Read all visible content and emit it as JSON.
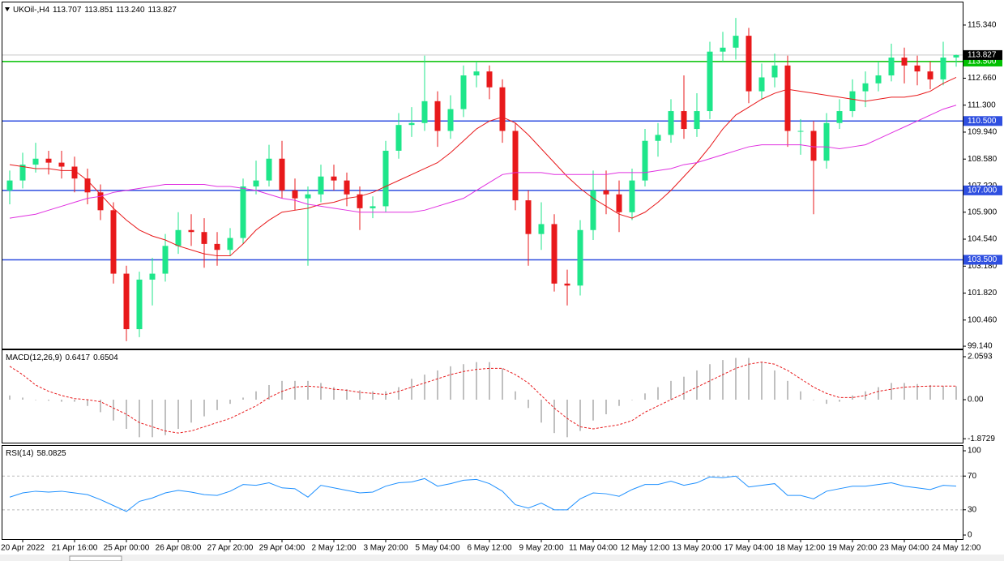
{
  "chart_data": [
    {
      "type": "candlestick",
      "title": "UKOil-,H4",
      "ohlc_labels": [
        "113.707",
        "113.851",
        "113.240",
        "113.827"
      ],
      "categories": [
        null,
        "20 Apr 2022",
        null,
        null,
        null,
        "21 Apr 16:00",
        null,
        null,
        null,
        "25 Apr 00:00",
        null,
        null,
        null,
        "26 Apr 08:00",
        null,
        null,
        null,
        "27 Apr 20:00",
        null,
        null,
        null,
        "29 Apr 04:00",
        null,
        null,
        null,
        "2 May 12:00",
        null,
        null,
        null,
        "3 May 20:00",
        null,
        null,
        null,
        "5 May 04:00",
        null,
        null,
        null,
        "6 May 12:00",
        null,
        null,
        null,
        "9 May 20:00",
        null,
        null,
        null,
        "11 May 04:00",
        null,
        null,
        null,
        "12 May 12:00",
        null,
        null,
        null,
        "13 May 20:00",
        null,
        null,
        null,
        "17 May 04:00",
        null,
        null,
        null,
        "18 May 12:00",
        null,
        null,
        null,
        "19 May 20:00",
        null,
        null,
        null,
        "23 May 04:00",
        null,
        null,
        null,
        "24 May 12:00"
      ],
      "open": [
        107.0,
        107.5,
        108.3,
        108.6,
        108.4,
        108.2,
        107.6,
        106.9,
        106.0,
        102.8,
        100.0,
        102.5,
        102.8,
        104.2,
        105.0,
        104.9,
        104.3,
        104.0,
        104.6,
        107.2,
        107.5,
        108.6,
        107.0,
        106.6,
        106.8,
        107.7,
        107.5,
        106.8,
        106.1,
        106.2,
        109.0,
        110.3,
        110.4,
        111.5,
        110.0,
        111.1,
        112.8,
        113.0,
        112.2,
        110.0,
        106.5,
        104.8,
        105.3,
        102.3,
        102.2,
        105.0,
        107.0,
        106.8,
        105.9,
        107.5,
        109.5,
        109.8,
        111.0,
        110.1,
        111.0,
        114.0,
        114.2,
        114.8,
        112.0,
        112.7,
        113.3,
        110.0,
        110.0,
        108.5,
        110.4,
        111.0,
        112.0,
        112.4,
        112.8,
        113.7,
        113.3,
        113.0,
        112.6,
        113.707
      ],
      "high": [
        108.0,
        108.9,
        109.4,
        109.0,
        109.0,
        108.7,
        108.1,
        107.3,
        106.4,
        103.2,
        102.9,
        103.6,
        104.8,
        105.9,
        105.8,
        105.6,
        104.9,
        105.1,
        107.6,
        108.5,
        109.3,
        109.5,
        107.6,
        107.2,
        108.3,
        108.3,
        107.9,
        107.2,
        106.7,
        109.5,
        110.9,
        111.2,
        113.8,
        112.0,
        111.8,
        113.3,
        113.5,
        113.3,
        112.6,
        110.4,
        107.0,
        106.4,
        105.8,
        103.0,
        105.5,
        108.0,
        108.0,
        107.5,
        108.1,
        110.1,
        110.4,
        111.6,
        112.8,
        111.9,
        114.5,
        115.0,
        115.7,
        115.2,
        113.4,
        113.9,
        113.8,
        110.6,
        110.5,
        110.9,
        111.6,
        112.6,
        113.0,
        113.5,
        114.4,
        114.2,
        113.8,
        113.5,
        114.5,
        113.851
      ],
      "low": [
        106.3,
        107.1,
        107.9,
        107.8,
        107.6,
        106.9,
        106.3,
        105.5,
        102.3,
        99.4,
        99.6,
        101.2,
        102.4,
        103.8,
        104.2,
        103.1,
        103.2,
        103.7,
        104.3,
        106.8,
        107.2,
        106.6,
        106.0,
        103.2,
        106.4,
        107.0,
        106.2,
        105.0,
        105.6,
        105.9,
        108.6,
        109.7,
        110.0,
        109.2,
        109.6,
        110.7,
        112.2,
        111.6,
        109.4,
        106.0,
        103.2,
        104.0,
        101.9,
        101.2,
        101.7,
        104.5,
        105.8,
        104.9,
        105.5,
        107.2,
        108.7,
        109.4,
        109.6,
        109.7,
        110.6,
        113.5,
        113.6,
        111.4,
        111.6,
        112.2,
        109.2,
        108.8,
        105.8,
        108.1,
        110.1,
        110.7,
        111.2,
        112.0,
        112.5,
        112.4,
        112.3,
        112.1,
        112.3,
        113.24
      ],
      "close": [
        107.5,
        108.3,
        108.6,
        108.4,
        108.2,
        107.6,
        106.9,
        106.0,
        102.8,
        100.0,
        102.5,
        102.8,
        104.2,
        105.0,
        104.9,
        104.3,
        104.0,
        104.6,
        107.2,
        107.5,
        108.6,
        107.0,
        106.6,
        106.8,
        107.7,
        107.5,
        106.8,
        106.1,
        106.2,
        109.0,
        110.3,
        110.4,
        111.5,
        110.0,
        111.1,
        112.8,
        113.0,
        112.2,
        110.0,
        106.5,
        104.8,
        105.3,
        102.3,
        102.2,
        105.0,
        107.0,
        106.8,
        105.9,
        107.5,
        109.5,
        109.8,
        111.0,
        110.1,
        111.0,
        114.0,
        114.2,
        114.8,
        112.0,
        112.7,
        113.3,
        110.0,
        110.0,
        108.5,
        110.4,
        111.0,
        112.0,
        112.4,
        112.8,
        113.7,
        113.3,
        113.0,
        112.6,
        113.7,
        113.827
      ],
      "up_color": "#1ee68a",
      "down_color": "#e8191b",
      "current_price_color": "#c8c8c8",
      "lines": [
        {
          "color": "#e8191b",
          "values": [
            108.3,
            108.2,
            108.1,
            108.1,
            108.0,
            108.0,
            107.5,
            106.8,
            106.1,
            105.5,
            105.0,
            104.7,
            104.5,
            104.2,
            104.0,
            103.8,
            103.7,
            103.7,
            104.3,
            105.0,
            105.5,
            105.9,
            106.0,
            106.1,
            106.3,
            106.4,
            106.6,
            106.7,
            106.9,
            107.2,
            107.5,
            107.8,
            108.1,
            108.4,
            108.9,
            109.5,
            110.1,
            110.5,
            110.7,
            110.4,
            109.8,
            109.1,
            108.4,
            107.7,
            107.1,
            106.6,
            106.2,
            105.8,
            105.6,
            105.9,
            106.4,
            107.0,
            107.7,
            108.4,
            109.2,
            110.1,
            110.8,
            111.2,
            111.6,
            111.9,
            112.1,
            112.0,
            111.9,
            111.8,
            111.7,
            111.6,
            111.5,
            111.6,
            111.7,
            111.7,
            111.8,
            112.0,
            112.4,
            112.7
          ]
        },
        {
          "color": "#e030e0",
          "values": [
            105.6,
            105.7,
            105.8,
            106.0,
            106.2,
            106.4,
            106.6,
            106.7,
            106.9,
            107.0,
            107.1,
            107.2,
            107.3,
            107.3,
            107.3,
            107.3,
            107.2,
            107.2,
            107.1,
            107.0,
            106.8,
            106.6,
            106.5,
            106.3,
            106.2,
            106.1,
            106.0,
            105.9,
            105.9,
            105.9,
            105.9,
            105.9,
            106.0,
            106.2,
            106.4,
            106.6,
            107.0,
            107.4,
            107.8,
            107.9,
            107.9,
            107.9,
            107.8,
            107.8,
            107.8,
            107.8,
            107.8,
            107.9,
            107.9,
            107.9,
            108.0,
            108.1,
            108.3,
            108.4,
            108.6,
            108.8,
            109.0,
            109.2,
            109.3,
            109.3,
            109.3,
            109.3,
            109.2,
            109.2,
            109.1,
            109.2,
            109.3,
            109.6,
            109.9,
            110.2,
            110.5,
            110.8,
            111.1,
            111.3
          ]
        }
      ],
      "levels": [
        {
          "value": 113.5,
          "label": "113.500",
          "color": "#00c000"
        },
        {
          "value": 110.5,
          "label": "110.500",
          "color": "#2f4fe0"
        },
        {
          "value": 107.0,
          "label": "107.000",
          "color": "#2f4fe0"
        },
        {
          "value": 103.5,
          "label": "103.500",
          "color": "#2f4fe0"
        }
      ],
      "ylim": [
        99.02,
        116.4
      ],
      "yticks": [
        {
          "value": 115.34,
          "label": "115.340"
        },
        {
          "value": 112.66,
          "label": "112.660"
        },
        {
          "value": 111.3,
          "label": "111.300"
        },
        {
          "value": 109.94,
          "label": "109.940"
        },
        {
          "value": 108.58,
          "label": "108.580"
        },
        {
          "value": 107.22,
          "label": "107.220"
        },
        {
          "value": 105.9,
          "label": "105.900"
        },
        {
          "value": 104.54,
          "label": "104.540"
        },
        {
          "value": 103.18,
          "label": "103.180"
        },
        {
          "value": 101.82,
          "label": "101.820"
        },
        {
          "value": 100.46,
          "label": "100.460"
        },
        {
          "value": 99.14,
          "label": "99.140"
        }
      ]
    },
    {
      "type": "macd",
      "title": "MACD(12,26,9)",
      "histogram": [
        0.2,
        0.1,
        0.0,
        -0.05,
        -0.1,
        -0.1,
        -0.3,
        -0.6,
        -1.0,
        -1.4,
        -1.8,
        -1.8,
        -1.7,
        -1.4,
        -1.1,
        -0.8,
        -0.5,
        -0.2,
        0.1,
        0.4,
        0.7,
        0.9,
        0.9,
        0.9,
        0.8,
        0.6,
        0.5,
        0.45,
        0.4,
        0.4,
        0.6,
        1.0,
        1.2,
        1.4,
        1.6,
        1.7,
        1.8,
        1.8,
        1.5,
        0.4,
        -0.4,
        -1.1,
        -1.6,
        -1.8,
        -1.5,
        -1.0,
        -0.7,
        -0.3,
        0.0,
        0.3,
        0.6,
        0.9,
        1.1,
        1.4,
        1.7,
        1.9,
        2.0,
        2.0,
        1.8,
        1.4,
        0.9,
        0.4,
        0.0,
        -0.2,
        -0.1,
        0.2,
        0.4,
        0.6,
        0.8,
        0.8,
        0.75,
        0.7,
        0.65,
        0.6417
      ],
      "signal": [
        1.6,
        1.2,
        0.7,
        0.4,
        0.2,
        0.05,
        0.0,
        -0.1,
        -0.4,
        -0.7,
        -1.1,
        -1.3,
        -1.5,
        -1.6,
        -1.5,
        -1.3,
        -1.1,
        -0.9,
        -0.6,
        -0.3,
        0.1,
        0.4,
        0.6,
        0.65,
        0.6,
        0.5,
        0.45,
        0.35,
        0.3,
        0.25,
        0.4,
        0.6,
        0.8,
        1.0,
        1.2,
        1.35,
        1.45,
        1.5,
        1.5,
        1.2,
        0.8,
        0.2,
        -0.4,
        -0.9,
        -1.3,
        -1.4,
        -1.3,
        -1.2,
        -1.0,
        -0.6,
        -0.3,
        0.0,
        0.3,
        0.6,
        0.9,
        1.2,
        1.5,
        1.7,
        1.8,
        1.7,
        1.4,
        1.0,
        0.6,
        0.3,
        0.1,
        0.1,
        0.2,
        0.4,
        0.5,
        0.6,
        0.63,
        0.65,
        0.65,
        0.6504
      ],
      "histogram_color": "#c0c0c0",
      "signal_color": "#e8191b",
      "ylim": [
        -2.06,
        2.37
      ],
      "yticks": [
        2.0593,
        {
          "value": 0,
          "label": "0.00"
        },
        -1.8729
      ]
    },
    {
      "type": "rsi",
      "title": "RSI(14)",
      "values": [
        45,
        50,
        52,
        51,
        52,
        50,
        48,
        42,
        35,
        28,
        40,
        44,
        50,
        53,
        51,
        48,
        47,
        52,
        60,
        59,
        62,
        56,
        55,
        45,
        59,
        56,
        53,
        50,
        51,
        58,
        62,
        63,
        67,
        58,
        61,
        65,
        66,
        61,
        52,
        36,
        32,
        38,
        30,
        30,
        43,
        50,
        49,
        46,
        54,
        60,
        60,
        64,
        59,
        62,
        69,
        68,
        70,
        57,
        59,
        61,
        47,
        47,
        43,
        52,
        55,
        58,
        58,
        60,
        62,
        58,
        56,
        54,
        59,
        58.0825
      ],
      "color": "#1e90ff",
      "ylim": [
        -4.8,
        105.8
      ],
      "yticks": [
        100,
        70,
        30,
        0
      ],
      "levels": [
        70,
        30
      ]
    }
  ]
}
